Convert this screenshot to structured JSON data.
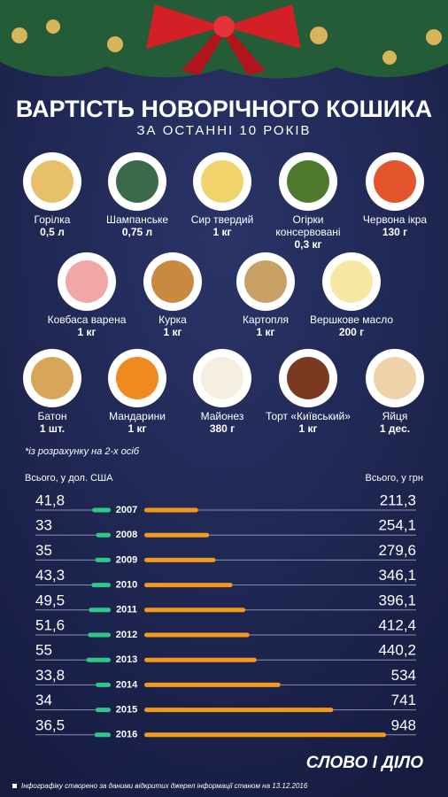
{
  "header": {
    "title": "ВАРТІСТЬ НОВОРІЧНОГО КОШИКА",
    "subtitle": "ЗА ОСТАННІ 10 РОКІВ"
  },
  "items": [
    {
      "name": "Горілка",
      "amount": "0,5 л"
    },
    {
      "name": "Шампанське",
      "amount": "0,75 л"
    },
    {
      "name": "Сир твердий",
      "amount": "1 кг"
    },
    {
      "name": "Огірки консервовані",
      "amount": "0,3 кг"
    },
    {
      "name": "Червона ікра",
      "amount": "130 г"
    },
    {
      "name": "Ковбаса варена",
      "amount": "1 кг"
    },
    {
      "name": "Курка",
      "amount": "1 кг"
    },
    {
      "name": "Картопля",
      "amount": "1 кг"
    },
    {
      "name": "Вершкове масло",
      "amount": "200 г"
    },
    {
      "name": "Батон",
      "amount": "1 шт."
    },
    {
      "name": "Мандарини",
      "amount": "1 кг"
    },
    {
      "name": "Майонез",
      "amount": "380 г"
    },
    {
      "name": "Торт «Київський»",
      "amount": "1 кг"
    },
    {
      "name": "Яйця",
      "amount": "1 дес."
    }
  ],
  "note": "*із розрахунку на 2-х осіб",
  "chart_data": {
    "type": "butterfly",
    "categories": [
      "2007",
      "2008",
      "2009",
      "2010",
      "2011",
      "2012",
      "2013",
      "2014",
      "2015",
      "2016"
    ],
    "series": [
      {
        "name": "Всього, у дол. США",
        "color": "#2ec98a",
        "values": [
          41.8,
          33,
          35,
          43.3,
          49.5,
          51.6,
          55,
          33.8,
          34,
          36.5
        ],
        "value_labels": [
          "41,8",
          "33",
          "35",
          "43,3",
          "49,5",
          "51,6",
          "55",
          "33,8",
          "34",
          "36,5"
        ]
      },
      {
        "name": "Всього, у грн",
        "color": "#f39a1e",
        "values": [
          211.3,
          254.1,
          279.6,
          346.1,
          396.1,
          412.4,
          440.2,
          534,
          741,
          948
        ],
        "value_labels": [
          "211,3",
          "254,1",
          "279,6",
          "346,1",
          "396,1",
          "412,4",
          "440,2",
          "534",
          "741",
          "948"
        ]
      }
    ]
  },
  "footer": {
    "logo": "СЛОВО І ДІЛО",
    "source": "Інфографіку створено за даними відкритих джерел інформації станом на 13.12.2016"
  }
}
